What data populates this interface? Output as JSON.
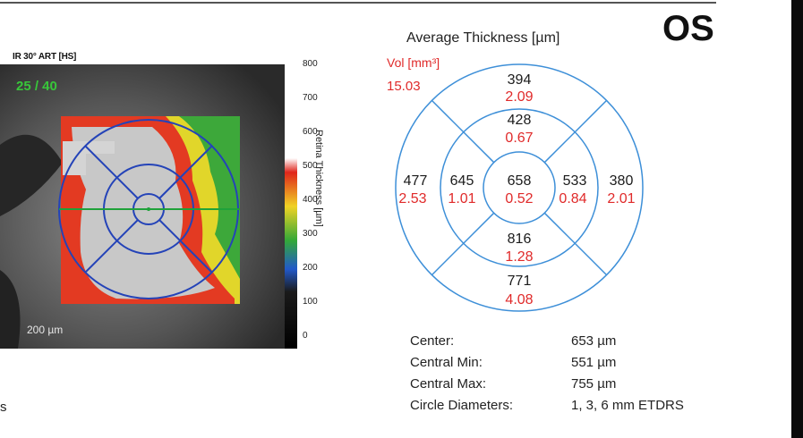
{
  "eye": "OS",
  "scan": {
    "label": "IR 30° ART [HS]",
    "quality": "25 / 40",
    "scale": "200 µm",
    "footer_fragment": "s"
  },
  "colorbar": {
    "title": "Retina Thickness [µm]",
    "ticks": [
      "800",
      "700",
      "600",
      "500",
      "400",
      "300",
      "200",
      "100",
      "0"
    ]
  },
  "etdrs": {
    "heading": "Average Thickness [µm]",
    "vol_label": "Vol [mm³]",
    "total_volume": "15.03",
    "sectors": {
      "superior_outer": {
        "thickness": "394",
        "volume": "2.09"
      },
      "superior_inner": {
        "thickness": "428",
        "volume": "0.67"
      },
      "temporal_outer": {
        "thickness": "477",
        "volume": "2.53"
      },
      "temporal_inner": {
        "thickness": "645",
        "volume": "1.01"
      },
      "center": {
        "thickness": "658",
        "volume": "0.52"
      },
      "nasal_inner": {
        "thickness": "533",
        "volume": "0.84"
      },
      "nasal_outer": {
        "thickness": "380",
        "volume": "2.01"
      },
      "inferior_inner": {
        "thickness": "816",
        "volume": "1.28"
      },
      "inferior_outer": {
        "thickness": "771",
        "volume": "4.08"
      }
    }
  },
  "stats": [
    {
      "name": "Center:",
      "value": "653 µm"
    },
    {
      "name": "Central Min:",
      "value": "551 µm"
    },
    {
      "name": "Central Max:",
      "value": "755 µm"
    },
    {
      "name": "Circle Diameters:",
      "value": "1, 3, 6 mm ETDRS"
    }
  ],
  "colors": {
    "grid_line": "#3d8fd8",
    "thickness_text": "#1b1b1b",
    "volume_text": "#e02a2a",
    "scan_overlay": "#2443b8",
    "scan_horizontal": "#1fa23a"
  }
}
